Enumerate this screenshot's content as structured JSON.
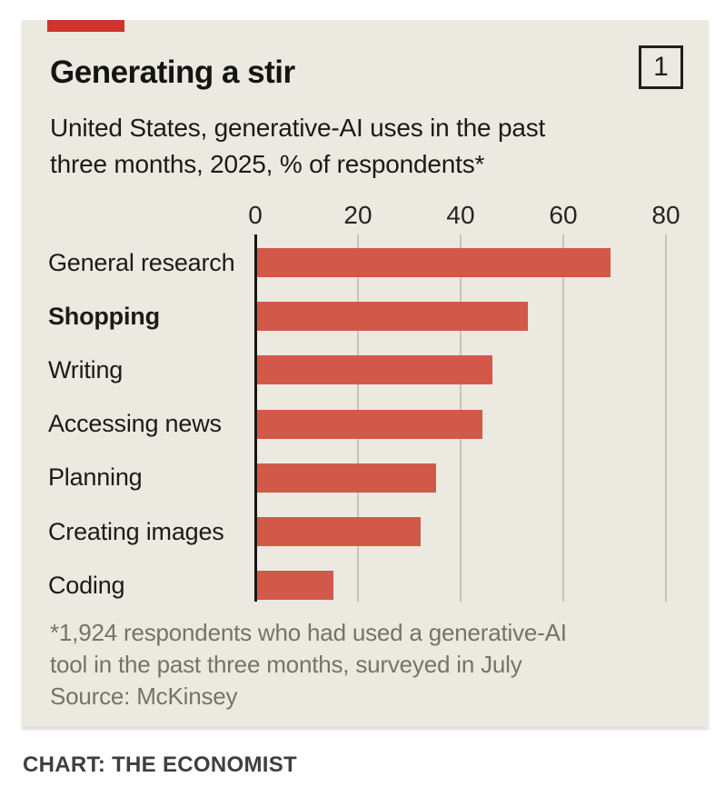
{
  "card": {
    "title": "Generating a stir",
    "index_badge": "1",
    "subtitle_lines": [
      "United States, generative-AI uses in the past",
      "three months, 2025, % of respondents*"
    ],
    "footnote_lines": [
      "*1,924 respondents who had used a generative-AI",
      "tool in the past three months, surveyed in July"
    ],
    "source": "Source: McKinsey"
  },
  "page": {
    "caption": "CHART: THE ECONOMIST"
  },
  "colors": {
    "card_background": "#ece9e0",
    "red_tab": "#ce342b",
    "bar_red": "#d2594a",
    "gridline": "#c6c4ba",
    "axis": "#161614",
    "footnote_gray": "#767369"
  },
  "chart_data": {
    "type": "bar",
    "orientation": "horizontal",
    "title": "Generating a stir",
    "subtitle": "United States, generative-AI uses in the past three months, 2025, % of respondents*",
    "categories": [
      "General research",
      "Shopping",
      "Writing",
      "Accessing news",
      "Planning",
      "Creating images",
      "Coding"
    ],
    "values": [
      69,
      53,
      46,
      44,
      35,
      32,
      15
    ],
    "emphasized_category": "Shopping",
    "x_ticks": [
      0,
      20,
      40,
      60,
      80
    ],
    "xlim": [
      0,
      80
    ],
    "grid": true,
    "legend": "none",
    "bar_color": "#d2594a"
  }
}
